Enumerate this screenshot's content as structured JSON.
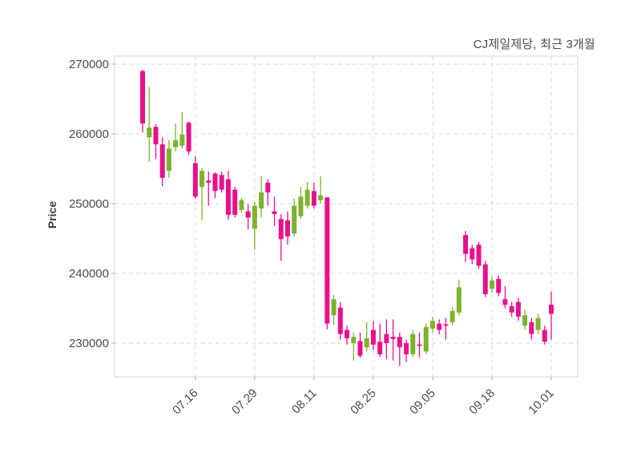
{
  "chart": {
    "title": "CJ제일제당, 최근 3개월",
    "ylabel": "Price"
  },
  "chart_data": {
    "type": "candlestick",
    "title": "CJ제일제당, 최근 3개월",
    "xlabel": "",
    "ylabel": "Price",
    "grid": true,
    "legend": "none",
    "y_ticks": [
      230000,
      240000,
      250000,
      260000,
      270000
    ],
    "ylim": [
      225172,
      271149
    ],
    "x_tick_labels": [
      "07.16",
      "07.29",
      "08.11",
      "08.25",
      "09.05",
      "09.18",
      "10.01"
    ],
    "x_tick_indices": [
      8,
      17,
      26,
      35,
      44,
      53,
      62
    ],
    "colors": {
      "up": "#7cb32d",
      "down": "#e9108c",
      "grid": "#d9d9d9",
      "border": "#d4d4d4",
      "tick_text": "#4a4a4a"
    },
    "candles_format": [
      "open",
      "high",
      "low",
      "close"
    ],
    "candles": [
      [
        269000,
        269200,
        260200,
        261500
      ],
      [
        259500,
        266700,
        256000,
        260900
      ],
      [
        261000,
        261400,
        256400,
        258500
      ],
      [
        258500,
        259500,
        252500,
        253700
      ],
      [
        254700,
        259100,
        253700,
        257900
      ],
      [
        258100,
        261500,
        257500,
        259100
      ],
      [
        258300,
        263100,
        257900,
        259900
      ],
      [
        261600,
        261800,
        257000,
        257500
      ],
      [
        255800,
        256800,
        250700,
        251000
      ],
      [
        252400,
        255100,
        247600,
        254700
      ],
      [
        253300,
        254600,
        249700,
        253000
      ],
      [
        254300,
        254500,
        250800,
        251800
      ],
      [
        254100,
        254600,
        251600,
        252000
      ],
      [
        253500,
        254700,
        247700,
        248400
      ],
      [
        252000,
        252400,
        248000,
        248400
      ],
      [
        249100,
        250800,
        248700,
        250500
      ],
      [
        248900,
        249900,
        246300,
        248000
      ],
      [
        246400,
        250300,
        243400,
        249700
      ],
      [
        249300,
        253900,
        248000,
        251600
      ],
      [
        253000,
        253500,
        249700,
        251600
      ],
      [
        248900,
        251000,
        246800,
        248500
      ],
      [
        247800,
        248500,
        241800,
        244900
      ],
      [
        247600,
        248900,
        244100,
        245300
      ],
      [
        245700,
        250700,
        245300,
        249700
      ],
      [
        248200,
        252400,
        247800,
        251000
      ],
      [
        249700,
        253100,
        249300,
        252000
      ],
      [
        251800,
        253000,
        249300,
        249700
      ],
      [
        250500,
        253900,
        250000,
        251200
      ],
      [
        250900,
        250900,
        232000,
        232800
      ],
      [
        234000,
        236900,
        232600,
        236300
      ],
      [
        235100,
        235900,
        230500,
        231300
      ],
      [
        231900,
        232500,
        229800,
        230700
      ],
      [
        230000,
        231500,
        227500,
        230900
      ],
      [
        230300,
        231500,
        227900,
        228200
      ],
      [
        229400,
        233000,
        228800,
        230700
      ],
      [
        231900,
        233200,
        229000,
        229800
      ],
      [
        230200,
        232800,
        228000,
        228400
      ],
      [
        231300,
        233400,
        227700,
        230000
      ],
      [
        230900,
        233400,
        227500,
        230600
      ],
      [
        230900,
        231500,
        226700,
        229400
      ],
      [
        230000,
        230500,
        227300,
        228400
      ],
      [
        228400,
        231900,
        228000,
        231300
      ],
      [
        229800,
        231500,
        228000,
        229600
      ],
      [
        228800,
        232800,
        228400,
        232300
      ],
      [
        232100,
        233800,
        231500,
        233200
      ],
      [
        232800,
        233400,
        231300,
        231900
      ],
      [
        232700,
        233600,
        230500,
        232500
      ],
      [
        233000,
        235100,
        232500,
        234600
      ],
      [
        234400,
        239100,
        234000,
        238000
      ],
      [
        245500,
        246100,
        241600,
        242800
      ],
      [
        243600,
        244100,
        241300,
        242000
      ],
      [
        244100,
        244500,
        240700,
        241100
      ],
      [
        241300,
        241800,
        236600,
        237000
      ],
      [
        237800,
        239500,
        237200,
        239000
      ],
      [
        239200,
        239700,
        236700,
        237200
      ],
      [
        236300,
        238200,
        235000,
        235500
      ],
      [
        235300,
        235900,
        233800,
        234400
      ],
      [
        235900,
        236500,
        233200,
        233800
      ],
      [
        232500,
        234800,
        231900,
        234000
      ],
      [
        233000,
        233600,
        230500,
        231300
      ],
      [
        231900,
        234200,
        231300,
        233600
      ],
      [
        231900,
        232500,
        229800,
        230200
      ],
      [
        235500,
        237400,
        230500,
        234200
      ]
    ]
  }
}
